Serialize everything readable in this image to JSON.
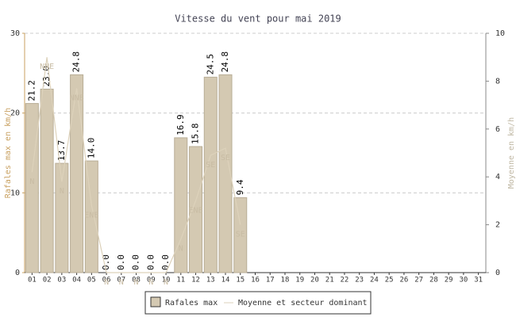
{
  "chart_data": {
    "type": "bar",
    "title": "Vitesse du vent pour mai 2019",
    "y_label": "Rafales max en km/h",
    "y2_label": "Moyenne en km/h",
    "categories": [
      "01",
      "02",
      "03",
      "04",
      "05",
      "06",
      "07",
      "08",
      "09",
      "10",
      "11",
      "12",
      "13",
      "14",
      "15",
      "16",
      "17",
      "18",
      "19",
      "20",
      "21",
      "22",
      "23",
      "24",
      "25",
      "26",
      "27",
      "28",
      "29",
      "30",
      "31"
    ],
    "ylim": [
      0,
      30
    ],
    "yticks": [
      0,
      10,
      20,
      30
    ],
    "y2lim": [
      0,
      10
    ],
    "y2ticks": [
      0,
      2,
      4,
      6,
      8,
      10
    ],
    "grid": true,
    "legend": "bottom",
    "series": [
      {
        "name": "Rafales max",
        "color": "#d4c9b2",
        "values": [
          21.2,
          23.0,
          13.7,
          24.8,
          14.0,
          0.0,
          0.0,
          0.0,
          0.0,
          0.0,
          16.9,
          15.8,
          24.5,
          24.8,
          9.4,
          null,
          null,
          null,
          null,
          null,
          null,
          null,
          null,
          null,
          null,
          null,
          null,
          null,
          null,
          null,
          null
        ],
        "value_labels": [
          "21.2",
          "23.0",
          "13.7",
          "24.8",
          "14.0",
          "0.0",
          "0.0",
          "0.0",
          "0.0",
          "0.0",
          "16.9",
          "15.8",
          "24.5",
          "24.8",
          "9.4",
          null,
          null,
          null,
          null,
          null,
          null,
          null,
          null,
          null,
          null,
          null,
          null,
          null,
          null,
          null,
          null
        ]
      },
      {
        "name": "Moyenne et secteur dominant",
        "color": "#ddd2bb",
        "axis": "y2",
        "values": [
          4.2,
          9.0,
          3.8,
          7.7,
          2.8,
          0,
          0,
          0,
          0,
          0,
          1.4,
          3.0,
          4.9,
          5.2,
          2.0,
          null,
          null,
          null,
          null,
          null,
          null,
          null,
          null,
          null,
          null,
          null,
          null,
          null,
          null,
          null,
          null
        ],
        "sectors": [
          "N",
          "NNE",
          "N",
          "NNE",
          "ENE",
          "N",
          "N",
          "N",
          "N",
          "N",
          "N",
          "ENE",
          "SE",
          "SE",
          "SE",
          null,
          null,
          null,
          null,
          null,
          null,
          null,
          null,
          null,
          null,
          null,
          null,
          null,
          null,
          null,
          null
        ]
      }
    ]
  }
}
